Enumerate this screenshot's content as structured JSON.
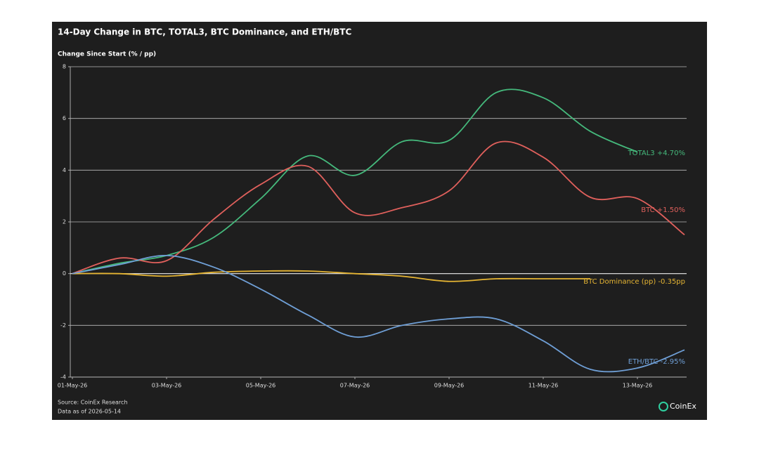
{
  "chart_data": {
    "type": "line",
    "title": "14-Day Change in BTC, TOTAL3, BTC Dominance, and ETH/BTC",
    "y_label": "Change Since Start (% / pp)",
    "source": "Source: CoinEx Research",
    "data_as_of": "Data as of 2026-05-14",
    "brand": "CoinEx",
    "categories": [
      "01-May-26",
      null,
      "03-May-26",
      null,
      "05-May-26",
      null,
      "07-May-26",
      null,
      "09-May-26",
      null,
      "11-May-26",
      null,
      "13-May-26",
      null
    ],
    "ylim": [
      -4,
      8
    ],
    "yticks": [
      -4,
      -2,
      0,
      2,
      4,
      6,
      8
    ],
    "grid": true,
    "series": [
      {
        "name": "TOTAL3 +4.70%",
        "color": "#45b97c",
        "values": [
          0,
          0.4,
          0.7,
          1.4,
          2.9,
          4.55,
          3.8,
          5.1,
          5.15,
          7.0,
          6.8,
          5.5,
          4.7,
          null
        ]
      },
      {
        "name": "BTC +1.50%",
        "color": "#e0605c",
        "values": [
          0,
          0.6,
          0.5,
          2.1,
          3.45,
          4.15,
          2.35,
          2.55,
          3.2,
          5.05,
          4.5,
          2.95,
          2.9,
          1.5
        ]
      },
      {
        "name": "BTC Dominance (pp) -0.35pp",
        "color": "#e6b533",
        "values": [
          0,
          0,
          -0.1,
          0.05,
          0.1,
          0.1,
          0.0,
          -0.1,
          -0.3,
          -0.2,
          -0.2,
          -0.2,
          null,
          null
        ]
      },
      {
        "name": "ETH/BTC -2.95%",
        "color": "#6f9fd6",
        "values": [
          0,
          0.35,
          0.7,
          0.25,
          -0.6,
          -1.6,
          -2.45,
          -2.0,
          -1.75,
          -1.75,
          -2.6,
          -3.7,
          -3.65,
          -2.95
        ]
      }
    ]
  }
}
